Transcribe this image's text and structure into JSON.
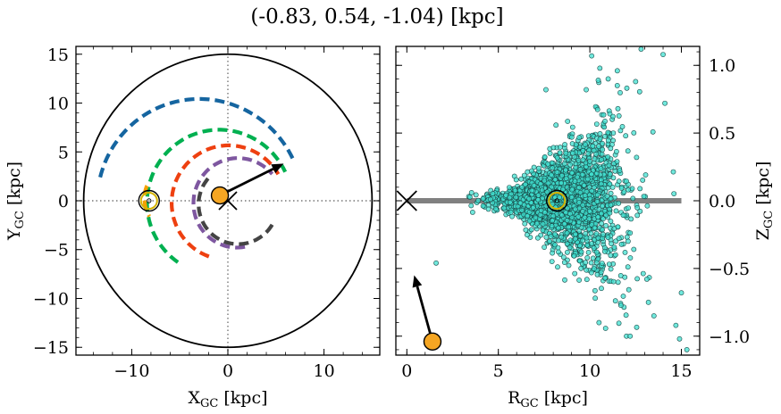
{
  "figure": {
    "title": "(-0.83, 0.54, -1.04) [kpc]"
  },
  "chart_data": [
    {
      "type": "scatter",
      "panel": "left",
      "xlabel": "X",
      "xlabel_sub": "GC",
      "xlabel_unit": " [kpc]",
      "ylabel": "Y",
      "ylabel_sub": "GC",
      "ylabel_unit": " [kpc]",
      "xlim": [
        -15.8,
        15.8
      ],
      "ylim": [
        -15.8,
        15.8
      ],
      "xticks": [
        -10,
        0,
        10
      ],
      "yticks": [
        -15,
        -10,
        -5,
        0,
        5,
        10,
        15
      ],
      "xtick_labels": [
        "−10",
        "0",
        "10"
      ],
      "ytick_labels": [
        "−15",
        "−10",
        "−5",
        "0",
        "5",
        "10",
        "15"
      ],
      "grid": false,
      "boundary_circle": {
        "center": [
          0,
          0
        ],
        "radius": 15,
        "color": "#000000"
      },
      "reference_lines": {
        "x": 0,
        "y": 0,
        "color": "#777777",
        "style": "dotted"
      },
      "galactic_center_marker": {
        "x": 0,
        "y": 0,
        "marker": "x"
      },
      "sun_marker": {
        "x": -8.2,
        "y": 0,
        "marker": "sun",
        "color": "#d4b200"
      },
      "object": {
        "x": -0.83,
        "y": 0.54,
        "color": "#f5a623"
      },
      "velocity_arrow": {
        "from": [
          -0.83,
          0.54
        ],
        "to": [
          5.8,
          3.8
        ]
      },
      "spiral_arms": [
        {
          "color": "#1565a0",
          "radius": 10.7,
          "start_deg": 165,
          "end_deg": 25,
          "cx": -3.2,
          "cy": -0.3
        },
        {
          "color": "#00b050",
          "radius": 7.5,
          "start_deg": 235,
          "end_deg": 25,
          "cx": -1.0,
          "cy": -0.3
        },
        {
          "color": "#ee4010",
          "radius": 5.9,
          "start_deg": 250,
          "end_deg": 30,
          "cx": 0.0,
          "cy": -0.3
        },
        {
          "color": "#7e57a0",
          "radius": 4.6,
          "start_deg": 280,
          "end_deg": 40,
          "cx": 1.0,
          "cy": -0.3
        },
        {
          "color": "#444444",
          "radius": 4.1,
          "start_deg": 140,
          "end_deg": 330,
          "cx": 1.0,
          "cy": -0.3
        },
        {
          "color": "#f5a000",
          "radius": 3.4,
          "start_deg": 160,
          "end_deg": 215,
          "cx": -5.3,
          "cy": 0.4
        }
      ]
    },
    {
      "type": "scatter",
      "panel": "right",
      "xlabel": "R",
      "xlabel_sub": "GC",
      "xlabel_unit": " [kpc]",
      "ylabel": "Z",
      "ylabel_sub": "GC",
      "ylabel_unit": " [kpc]",
      "ylabel_side": "right",
      "xlim": [
        -0.6,
        16.0
      ],
      "ylim": [
        -1.14,
        1.14
      ],
      "xticks": [
        0,
        5,
        10,
        15
      ],
      "yticks": [
        -1.0,
        -0.5,
        0.0,
        0.5,
        1.0
      ],
      "xtick_labels": [
        "0",
        "5",
        "10",
        "15"
      ],
      "ytick_labels": [
        "−1.0",
        "−0.5",
        "0.0",
        "0.5",
        "1.0"
      ],
      "grid": false,
      "disk_line": {
        "x": [
          0,
          15
        ],
        "y": 0,
        "color": "#808080"
      },
      "galactic_center_marker": {
        "x": 0,
        "y": 0,
        "marker": "x"
      },
      "sun_marker": {
        "x": 8.2,
        "y": 0,
        "marker": "sun",
        "color": "#d4b200"
      },
      "object": {
        "x": 1.4,
        "y": -1.04,
        "color": "#f5a623"
      },
      "velocity_arrow": {
        "from": [
          1.4,
          -1.04
        ],
        "to": [
          0.4,
          -0.55
        ]
      },
      "stars": {
        "color": "#40e0d0",
        "count": 2400,
        "center_r": 8.5,
        "r_min": 3.2,
        "r_max": 15.5,
        "z_spread_note": "flaring cloud",
        "outliers": [
          [
            10.1,
            1.07
          ],
          [
            11.5,
            0.96
          ],
          [
            12.8,
            1.12
          ],
          [
            14.0,
            1.08
          ],
          [
            15.3,
            -1.1
          ],
          [
            14.7,
            -0.92
          ],
          [
            1.6,
            -0.46
          ],
          [
            10.5,
            -0.9
          ],
          [
            12.0,
            -1.0
          ],
          [
            13.5,
            -0.85
          ],
          [
            12.5,
            0.88
          ],
          [
            9.8,
            0.82
          ],
          [
            14.1,
            0.72
          ],
          [
            7.6,
            0.82
          ],
          [
            11.0,
            0.9
          ],
          [
            13.2,
            -0.75
          ],
          [
            12.2,
            -1.0
          ],
          [
            15.0,
            -0.68
          ],
          [
            14.9,
            -1.02
          ]
        ]
      }
    }
  ]
}
